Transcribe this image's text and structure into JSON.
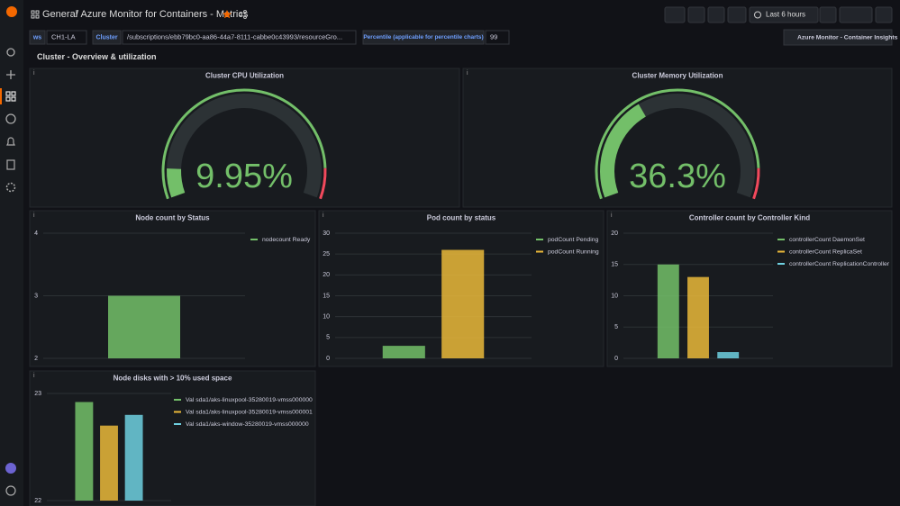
{
  "header": {
    "breadcrumb": "General",
    "title": "/ Azure Monitor for Containers - Metrics",
    "time_range": "Last 6 hours"
  },
  "variables": [
    {
      "label": "ws",
      "value": "CH1-LA"
    },
    {
      "label": "Cluster",
      "value": "/subscriptions/ebb79bc0-aa86-44a7-8111-cabbe0c43993/resourceGro..."
    },
    {
      "label": "Percentile (applicable for percentile charts)",
      "value": "99"
    }
  ],
  "link": "Azure Monitor - Container Insights",
  "row_title": "Cluster - Overview & utilization",
  "panels": [
    {
      "type": "gauge",
      "title": "Cluster CPU Utilization",
      "value": 9.95,
      "value_label": "9.95%",
      "ylim": [
        0,
        100
      ],
      "threshold": 90,
      "color": "#73bf69",
      "threshold_color": "#f2495c"
    },
    {
      "type": "gauge",
      "title": "Cluster Memory Utilization",
      "value": 36.3,
      "value_label": "36.3%",
      "ylim": [
        0,
        100
      ],
      "threshold": 90,
      "color": "#73bf69",
      "threshold_color": "#f2495c"
    },
    {
      "type": "bar",
      "title": "Node count by Status",
      "ylim": [
        2,
        4
      ],
      "yticks": [
        2,
        3,
        4
      ],
      "series": [
        {
          "name": "nodecount Ready",
          "color": "#73bf69",
          "values": [
            3
          ]
        }
      ]
    },
    {
      "type": "bar",
      "title": "Pod count by status",
      "ylim": [
        0,
        30
      ],
      "yticks": [
        0,
        5,
        10,
        15,
        20,
        25,
        30
      ],
      "series": [
        {
          "name": "podCount Pending",
          "color": "#73bf69",
          "values": [
            3
          ]
        },
        {
          "name": "podCount Running",
          "color": "#eab839",
          "values": [
            26
          ]
        }
      ]
    },
    {
      "type": "bar",
      "title": "Controller count by Controller Kind",
      "ylim": [
        0,
        20
      ],
      "yticks": [
        0,
        5,
        10,
        15,
        20
      ],
      "series": [
        {
          "name": "controllerCount DaemonSet",
          "color": "#73bf69",
          "values": [
            15
          ]
        },
        {
          "name": "controllerCount ReplicaSet",
          "color": "#eab839",
          "values": [
            13
          ]
        },
        {
          "name": "controllerCount ReplicationController",
          "color": "#6ed0e0",
          "values": [
            1
          ]
        }
      ]
    },
    {
      "type": "bar",
      "title": "Node disks with > 10% used space",
      "ylim": [
        22,
        23
      ],
      "yticks": [
        22,
        23
      ],
      "series": [
        {
          "name": "Val sda1/aks-linuxpool-35280019-vmss000000",
          "color": "#73bf69",
          "values": [
            22.92
          ]
        },
        {
          "name": "Val sda1/aks-linuxpool-35280019-vmss000001",
          "color": "#eab839",
          "values": [
            22.7
          ]
        },
        {
          "name": "Val sda1/aks-window-35280019-vmss000000",
          "color": "#6ed0e0",
          "values": [
            22.8
          ]
        }
      ]
    }
  ]
}
